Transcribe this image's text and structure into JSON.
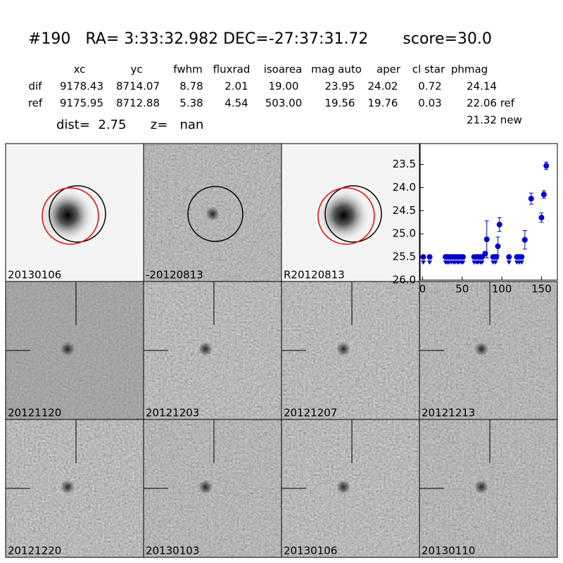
{
  "header": {
    "title": "#190   RA= 3:33:32.982 DEC=-27:37:31.72       score=30.0"
  },
  "table": {
    "columns": [
      "xc",
      "yc",
      "fwhm",
      "fluxrad",
      "isoarea",
      "mag auto",
      "aper",
      "cl star",
      "phmag"
    ],
    "rows": [
      [
        "dif",
        "9178.43",
        "8714.07",
        "8.78",
        "2.01",
        "19.00",
        "23.95",
        "24.02",
        "0.72",
        "24.14"
      ],
      [
        "ref",
        "9175.95",
        "8712.88",
        "5.38",
        "4.54",
        "503.00",
        "19.56",
        "19.76",
        "0.03",
        "22.06 ref"
      ]
    ],
    "extra": "21.32 new"
  },
  "dist_line": "dist=  2.75      z=   nan",
  "panels": [
    {
      "label": "20130106"
    },
    {
      "label": "-20120813"
    },
    {
      "label": "R20120813"
    },
    {
      "label": "20121120"
    },
    {
      "label": "20121203"
    },
    {
      "label": "20121207"
    },
    {
      "label": "20121213"
    },
    {
      "label": "20121220"
    },
    {
      "label": "20130103"
    },
    {
      "label": "20130106",
      "color": "#ff0000"
    },
    {
      "label": "20130110"
    }
  ],
  "chart_data": {
    "type": "scatter",
    "color": "#0000cc",
    "y_inverted": true,
    "xlim": [
      -3,
      170
    ],
    "xticks": [
      0,
      50,
      100,
      150
    ],
    "ylim": [
      23.05,
      26.0
    ],
    "yticks": [
      23.5,
      24.0,
      24.5,
      25.0,
      25.5,
      26.0
    ],
    "yticks_labels": [
      "23.5",
      "24.0",
      "24.5",
      "25.0",
      "25.5",
      "26.0"
    ],
    "detections": {
      "x": [
        79,
        81,
        93,
        95,
        97,
        129,
        137,
        150,
        153,
        156
      ],
      "values": [
        25.43,
        25.12,
        25.5,
        25.27,
        24.8,
        25.13,
        24.24,
        24.65,
        24.15,
        23.53
      ],
      "errors": [
        0.05,
        0.4,
        0.05,
        0.2,
        0.15,
        0.2,
        0.12,
        0.1,
        0.08,
        0.08
      ]
    },
    "limits": {
      "x": [
        1,
        9,
        29,
        31,
        33,
        36,
        39,
        41,
        44,
        46,
        49,
        51,
        65,
        68,
        70,
        73,
        75,
        89,
        92,
        109,
        119,
        122,
        125
      ],
      "values": [
        25.5,
        25.5,
        25.5,
        25.5,
        25.5,
        25.5,
        25.5,
        25.5,
        25.5,
        25.5,
        25.5,
        25.5,
        25.5,
        25.5,
        25.5,
        25.5,
        25.5,
        25.5,
        25.5,
        25.5,
        25.5,
        25.5,
        25.5
      ]
    }
  }
}
